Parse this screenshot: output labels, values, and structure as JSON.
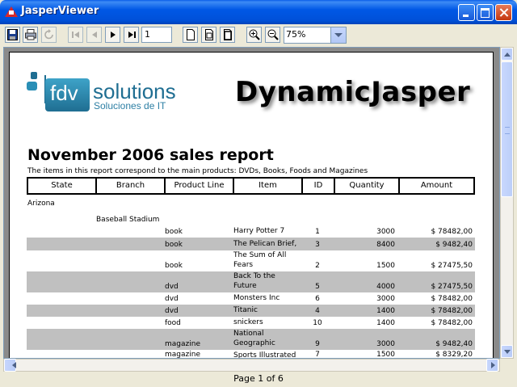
{
  "window": {
    "title": "JasperViewer"
  },
  "toolbar": {
    "page_number": "1",
    "zoom": "75%"
  },
  "report": {
    "logo_fdv": "fdv",
    "logo_solutions": "solutions",
    "logo_sub": "Soluciones de IT",
    "brand": "DynamicJasper",
    "title": "November 2006 sales report",
    "subtitle": "The items in this report correspond to the main products: DVDs, Books, Foods and Magazines",
    "columns": [
      "State",
      "Branch",
      "Product Line",
      "Item",
      "ID",
      "Quantity",
      "Amount"
    ],
    "state": "Arizona",
    "branch": "Baseball Stadium",
    "rows": [
      {
        "product_line": "book",
        "item": "Harry Potter 7",
        "id": "1",
        "quantity": "3000",
        "amount": "$ 78482,00"
      },
      {
        "product_line": "book",
        "item": "The Pelican Brief,",
        "id": "3",
        "quantity": "8400",
        "amount": "$ 9482,40"
      },
      {
        "product_line": "book",
        "item": "The Sum of All Fears",
        "id": "2",
        "quantity": "1500",
        "amount": "$ 27475,50"
      },
      {
        "product_line": "dvd",
        "item": "Back To the Future",
        "id": "5",
        "quantity": "4000",
        "amount": "$ 27475,50"
      },
      {
        "product_line": "dvd",
        "item": "Monsters Inc",
        "id": "6",
        "quantity": "3000",
        "amount": "$ 78482,00"
      },
      {
        "product_line": "dvd",
        "item": "Titanic",
        "id": "4",
        "quantity": "1400",
        "amount": "$ 78482,00"
      },
      {
        "product_line": "food",
        "item": "snickers",
        "id": "10",
        "quantity": "1400",
        "amount": "$ 78482,00"
      },
      {
        "product_line": "magazine",
        "item": "National Geographic",
        "id": "9",
        "quantity": "3000",
        "amount": "$ 9482,40"
      },
      {
        "product_line": "magazine",
        "item": "Sports Illustrated",
        "id": "7",
        "quantity": "1500",
        "amount": "$ 8329,20"
      }
    ]
  },
  "status": {
    "page_label": "Page 1 of 6"
  }
}
